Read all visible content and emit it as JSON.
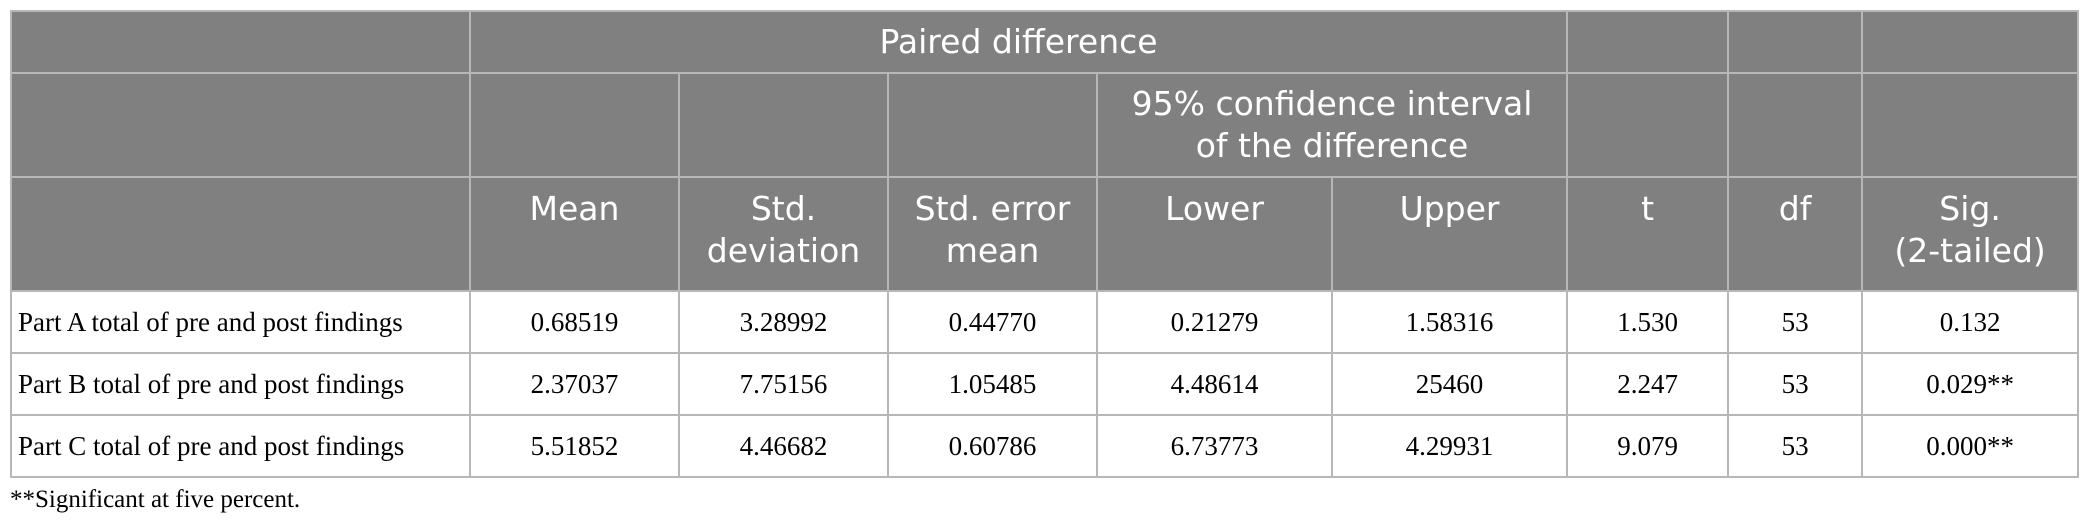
{
  "table": {
    "header": {
      "paired_difference": "Paired difference",
      "ci_line1": "95% confidence interval",
      "ci_line2": "of the difference",
      "mean": "Mean",
      "std_dev_line1": "Std.",
      "std_dev_line2": "deviation",
      "std_err_line1": "Std. error",
      "std_err_line2": "mean",
      "lower": "Lower",
      "upper": "Upper",
      "t": "t",
      "df": "df",
      "sig_line1": "Sig.",
      "sig_line2": "(2-tailed)"
    },
    "rows": [
      {
        "label": "Part A total of pre and post findings",
        "mean": "0.68519",
        "std_dev": "3.28992",
        "std_err": "0.44770",
        "lower": "0.21279",
        "upper": "1.58316",
        "t": "1.530",
        "df": "53",
        "sig": "0.132"
      },
      {
        "label": "Part B total of pre and post findings",
        "mean": "2.37037",
        "std_dev": "7.75156",
        "std_err": "1.05485",
        "lower": "4.48614",
        "upper": "25460",
        "t": "2.247",
        "df": "53",
        "sig": "0.029**"
      },
      {
        "label": "Part C total of pre and post findings",
        "mean": "5.51852",
        "std_dev": "4.46682",
        "std_err": "0.60786",
        "lower": "6.73773",
        "upper": "4.29931",
        "t": "9.079",
        "df": "53",
        "sig": "0.000**"
      }
    ]
  },
  "footnote": "**Significant at five percent."
}
